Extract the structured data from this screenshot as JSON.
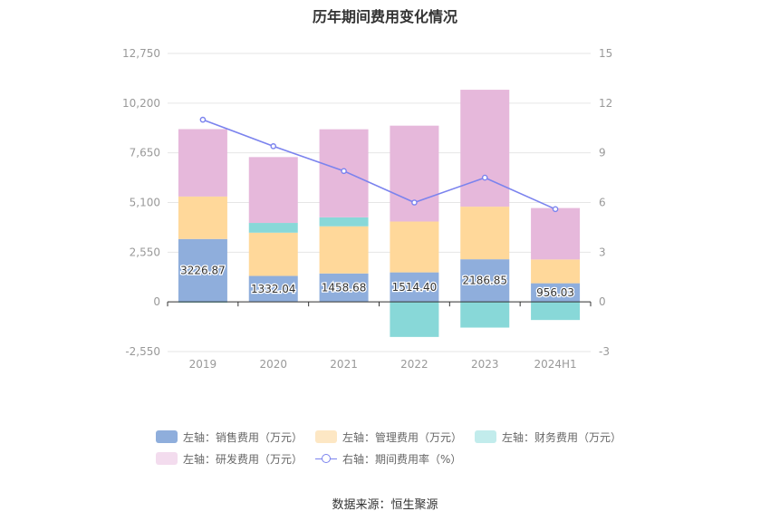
{
  "title": "历年期间费用变化情况",
  "source": "数据来源：恒生聚源",
  "legend": {
    "sales": "左轴：销售费用（万元）",
    "admin": "左轴：管理费用（万元）",
    "finance": "左轴：财务费用（万元）",
    "rnd": "左轴：研发费用（万元）",
    "rate": "右轴：期间费用率（%）"
  },
  "colors": {
    "sales": "#8faedc",
    "admin": "#ffd89a",
    "finance": "#88d8d8",
    "rnd": "#e6b8db",
    "rate": "#7b83ee",
    "legend_admin": "#fde7c4",
    "legend_finance": "#c2ecec",
    "legend_rnd": "#f3dcee"
  },
  "chart_data": {
    "type": "bar",
    "stacked": true,
    "categories": [
      "2019",
      "2020",
      "2021",
      "2022",
      "2023",
      "2024H1"
    ],
    "left_axis": {
      "ticks": [
        "12,750",
        "10,200",
        "7,650",
        "5,100",
        "2,550",
        "0",
        "-2,550"
      ],
      "ylim": [
        -2550,
        12750
      ]
    },
    "right_axis": {
      "ticks": [
        "15",
        "12",
        "9",
        "6",
        "3",
        "0",
        "-3"
      ],
      "ylim": [
        -3,
        15
      ]
    },
    "series": [
      {
        "key": "sales",
        "name": "左轴：销售费用（万元）",
        "values": [
          3226.87,
          1332.04,
          1458.68,
          1514.4,
          2186.85,
          956.03
        ],
        "labels": [
          "3226.87",
          "1332.04",
          "1458.68",
          "1514.40",
          "2186.85",
          "956.03"
        ]
      },
      {
        "key": "admin",
        "name": "左轴：管理费用（万元）",
        "values": [
          2180,
          2220,
          2420,
          2610,
          2700,
          1220
        ]
      },
      {
        "key": "finance",
        "name": "左轴：财务费用（万元）",
        "values": [
          -40,
          500,
          460,
          -1800,
          -1320,
          -930
        ]
      },
      {
        "key": "rnd",
        "name": "左轴：研发费用（万元）",
        "values": [
          3460,
          3380,
          4520,
          4920,
          6000,
          2640
        ]
      }
    ],
    "line": {
      "key": "rate",
      "name": "右轴：期间费用率（%）",
      "values": [
        11.0,
        9.4,
        7.9,
        6.0,
        7.5,
        5.6
      ]
    },
    "grid": true,
    "legend_position": "bottom"
  }
}
